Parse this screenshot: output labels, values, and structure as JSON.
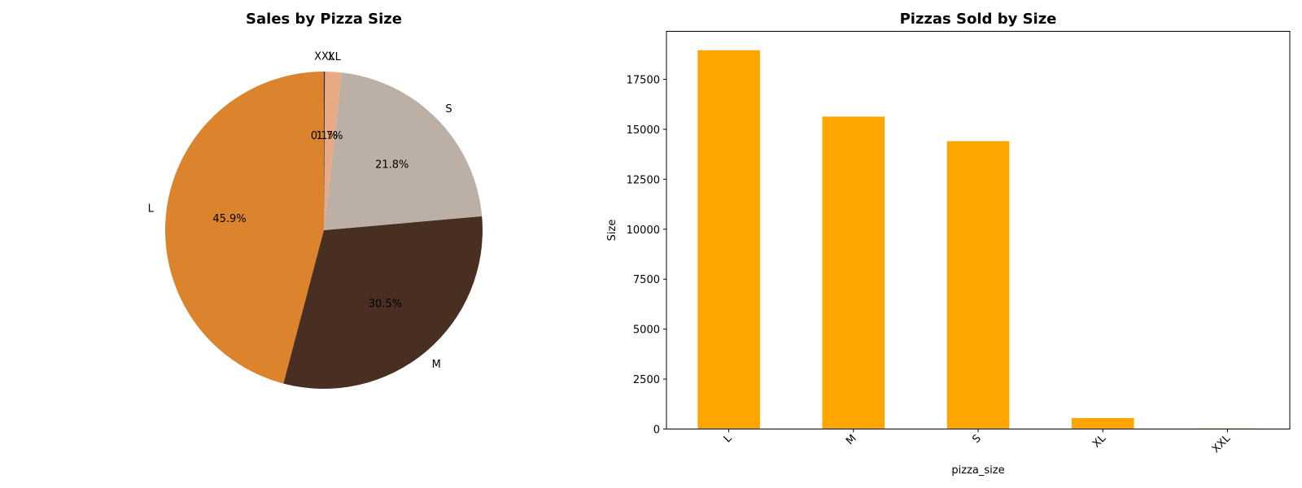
{
  "chart_data": [
    {
      "type": "pie",
      "title": "Sales by Pizza Size",
      "labels": [
        "L",
        "M",
        "S",
        "XL",
        "XXL"
      ],
      "values": [
        45.9,
        30.5,
        21.8,
        1.7,
        0.1
      ],
      "pct_labels": [
        "45.9%",
        "30.5%",
        "21.8%",
        "1.7%",
        "0.1%"
      ],
      "colors": [
        "#db842d",
        "#482f22",
        "#bbafa6",
        "#e8aa84",
        "#222222"
      ],
      "start_angle_deg": 90,
      "direction": "counterclockwise"
    },
    {
      "type": "bar",
      "title": "Pizzas Sold by Size",
      "categories": [
        "L",
        "M",
        "S",
        "XL",
        "XXL"
      ],
      "values": [
        18956,
        15635,
        14403,
        552,
        28
      ],
      "xlabel": "pizza_size",
      "ylabel": "Size",
      "ylim": [
        0,
        19903.8
      ],
      "yticks": [
        0,
        2500,
        5000,
        7500,
        10000,
        12500,
        15000,
        17500
      ],
      "bar_color": "#ffa500",
      "grid": false
    }
  ]
}
